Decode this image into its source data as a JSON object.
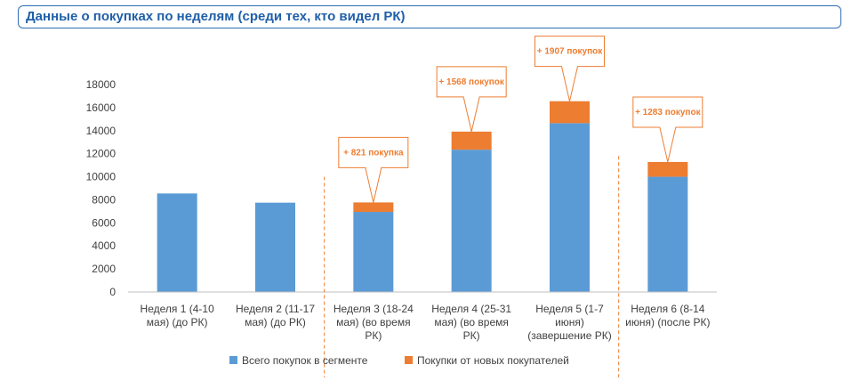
{
  "title": "Данные о покупках по неделям (среди тех, кто видел РК)",
  "colors": {
    "base": "#5b9bd5",
    "new": "#ed7d31",
    "title": "#1f5fa8",
    "axis": "#bfbfbf"
  },
  "chart_data": {
    "type": "bar",
    "stacked": true,
    "categories": [
      [
        "Неделя 1 (4-10",
        "мая) (до РК)"
      ],
      [
        "Неделя 2 (11-17",
        "мая) (до РК)"
      ],
      [
        "Неделя 3 (18-24",
        "мая) (во время",
        "РК)"
      ],
      [
        "Неделя 4 (25-31",
        "мая) (во время",
        "РК)"
      ],
      [
        "Неделя 5 (1-7",
        "июня)",
        "(завершение РК)"
      ],
      [
        "Неделя 6 (8-14",
        "июня) (после РК)"
      ]
    ],
    "series": [
      {
        "name": "Всего покупок в сегменте",
        "values": [
          8550,
          7750,
          6950,
          12350,
          14650,
          10000
        ]
      },
      {
        "name": "Покупки от новых покупателей",
        "values": [
          0,
          0,
          821,
          1568,
          1907,
          1283
        ]
      }
    ],
    "ylim": [
      0,
      18000
    ],
    "yticks": [
      0,
      2000,
      4000,
      6000,
      8000,
      10000,
      12000,
      14000,
      16000,
      18000
    ],
    "annotations": [
      {
        "category_index": 2,
        "text": "+ 821  покупка"
      },
      {
        "category_index": 3,
        "text": "+ 1568 покупок"
      },
      {
        "category_index": 4,
        "text": "+ 1907 покупок"
      },
      {
        "category_index": 5,
        "text": "+ 1283 покупок"
      }
    ],
    "grid": false,
    "legend_position": "bottom"
  }
}
